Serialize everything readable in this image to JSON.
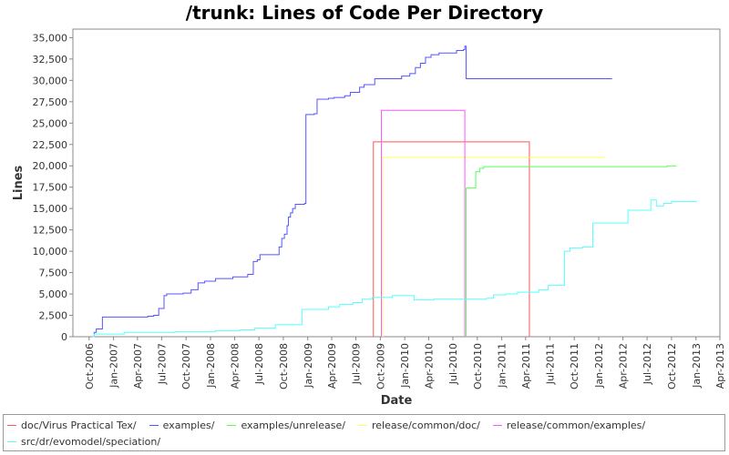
{
  "chart_data": {
    "type": "line",
    "title": "/trunk: Lines of Code Per Directory",
    "xlabel": "Date",
    "ylabel": "Lines",
    "xlim": [
      "2006-08-01",
      "2013-04-01"
    ],
    "ylim": [
      0,
      36000
    ],
    "y_ticks": [
      0,
      2500,
      5000,
      7500,
      10000,
      12500,
      15000,
      17500,
      20000,
      22500,
      25000,
      27500,
      30000,
      32500,
      35000
    ],
    "y_tick_labels": [
      "0",
      "2,500",
      "5,000",
      "7,500",
      "10,000",
      "12,500",
      "15,000",
      "17,500",
      "20,000",
      "22,500",
      "25,000",
      "27,500",
      "30,000",
      "32,500",
      "35,000"
    ],
    "x_ticks": [
      "2006-10-01",
      "2007-01-01",
      "2007-04-01",
      "2007-07-01",
      "2007-10-01",
      "2008-01-01",
      "2008-04-01",
      "2008-07-01",
      "2008-10-01",
      "2009-01-01",
      "2009-04-01",
      "2009-07-01",
      "2009-10-01",
      "2010-01-01",
      "2010-04-01",
      "2010-07-01",
      "2010-10-01",
      "2011-01-01",
      "2011-04-01",
      "2011-07-01",
      "2011-10-01",
      "2012-01-01",
      "2012-04-01",
      "2012-07-01",
      "2012-10-01",
      "2013-01-01",
      "2013-04-01"
    ],
    "x_tick_labels": [
      "Oct-2006",
      "Jan-2007",
      "Apr-2007",
      "Jul-2007",
      "Oct-2007",
      "Jan-2008",
      "Apr-2008",
      "Jul-2008",
      "Oct-2008",
      "Jan-2009",
      "Apr-2009",
      "Jul-2009",
      "Oct-2009",
      "Jan-2010",
      "Apr-2010",
      "Jul-2010",
      "Oct-2010",
      "Jan-2011",
      "Apr-2011",
      "Jul-2011",
      "Oct-2011",
      "Jan-2012",
      "Apr-2012",
      "Jul-2012",
      "Oct-2012",
      "Jan-2013",
      "Apr-2013"
    ],
    "grid": false,
    "legend_position": "bottom",
    "series": [
      {
        "name": "doc/Virus Practical Tex/",
        "color": "#ff5555",
        "step": true,
        "points": [
          [
            "2009-09-05",
            0
          ],
          [
            "2009-09-05",
            22800
          ],
          [
            "2011-04-15",
            22800
          ],
          [
            "2011-04-15",
            0
          ]
        ]
      },
      {
        "name": "examples/",
        "color": "#5555ff",
        "step": true,
        "points": [
          [
            "2006-10-15",
            0
          ],
          [
            "2006-10-20",
            500
          ],
          [
            "2006-10-28",
            900
          ],
          [
            "2006-11-20",
            2300
          ],
          [
            "2007-05-10",
            2400
          ],
          [
            "2007-06-01",
            2500
          ],
          [
            "2007-06-20",
            3300
          ],
          [
            "2007-07-10",
            4800
          ],
          [
            "2007-07-20",
            5000
          ],
          [
            "2007-09-20",
            5100
          ],
          [
            "2007-10-20",
            5500
          ],
          [
            "2007-11-15",
            6300
          ],
          [
            "2007-12-10",
            6500
          ],
          [
            "2008-01-20",
            6800
          ],
          [
            "2008-03-25",
            7000
          ],
          [
            "2008-05-20",
            7300
          ],
          [
            "2008-06-10",
            8800
          ],
          [
            "2008-06-25",
            9000
          ],
          [
            "2008-07-05",
            9600
          ],
          [
            "2008-09-15",
            10500
          ],
          [
            "2008-09-25",
            11500
          ],
          [
            "2008-10-05",
            12000
          ],
          [
            "2008-10-15",
            13000
          ],
          [
            "2008-10-20",
            14000
          ],
          [
            "2008-10-28",
            14500
          ],
          [
            "2008-11-05",
            15000
          ],
          [
            "2008-11-15",
            15500
          ],
          [
            "2008-12-20",
            15600
          ],
          [
            "2008-12-25",
            26000
          ],
          [
            "2009-01-25",
            26100
          ],
          [
            "2009-02-05",
            27800
          ],
          [
            "2009-03-20",
            27900
          ],
          [
            "2009-04-10",
            28000
          ],
          [
            "2009-05-20",
            28200
          ],
          [
            "2009-06-10",
            28600
          ],
          [
            "2009-07-15",
            29200
          ],
          [
            "2009-08-01",
            29500
          ],
          [
            "2009-09-10",
            30200
          ],
          [
            "2009-12-20",
            30500
          ],
          [
            "2010-01-20",
            30800
          ],
          [
            "2010-02-10",
            31500
          ],
          [
            "2010-03-01",
            32000
          ],
          [
            "2010-03-20",
            32700
          ],
          [
            "2010-04-10",
            33000
          ],
          [
            "2010-05-10",
            33200
          ],
          [
            "2010-07-15",
            33500
          ],
          [
            "2010-08-10",
            33600
          ],
          [
            "2010-08-15",
            34000
          ],
          [
            "2010-08-20",
            30200
          ],
          [
            "2012-02-20",
            30200
          ]
        ]
      },
      {
        "name": "examples/unrelease/",
        "color": "#55ff55",
        "step": true,
        "points": [
          [
            "2010-08-20",
            0
          ],
          [
            "2010-08-20",
            17400
          ],
          [
            "2010-09-25",
            19300
          ],
          [
            "2010-10-10",
            19700
          ],
          [
            "2010-10-25",
            19900
          ],
          [
            "2012-09-01",
            19900
          ],
          [
            "2012-09-15",
            20000
          ],
          [
            "2012-10-20",
            20000
          ]
        ]
      },
      {
        "name": "release/common/doc/",
        "color": "#ffff55",
        "step": true,
        "points": [
          [
            "2009-10-10",
            0
          ],
          [
            "2009-10-10",
            21000
          ],
          [
            "2012-01-25",
            21000
          ]
        ]
      },
      {
        "name": "release/common/examples/",
        "color": "#ff55ff",
        "step": true,
        "points": [
          [
            "2009-10-05",
            0
          ],
          [
            "2009-10-05",
            26500
          ],
          [
            "2010-08-15",
            26500
          ],
          [
            "2010-08-15",
            0
          ]
        ]
      },
      {
        "name": "src/dr/evomodel/speciation/",
        "color": "#55ffff",
        "step": true,
        "points": [
          [
            "2006-10-15",
            0
          ],
          [
            "2006-10-20",
            300
          ],
          [
            "2007-02-10",
            500
          ],
          [
            "2007-08-20",
            600
          ],
          [
            "2008-01-20",
            700
          ],
          [
            "2008-04-20",
            800
          ],
          [
            "2008-06-15",
            1000
          ],
          [
            "2008-09-01",
            1400
          ],
          [
            "2008-12-10",
            3200
          ],
          [
            "2009-03-20",
            3500
          ],
          [
            "2009-05-01",
            3800
          ],
          [
            "2009-06-20",
            4000
          ],
          [
            "2009-07-25",
            4400
          ],
          [
            "2009-09-01",
            4600
          ],
          [
            "2009-11-15",
            4800
          ],
          [
            "2010-02-05",
            4300
          ],
          [
            "2010-04-20",
            4400
          ],
          [
            "2010-11-05",
            4500
          ],
          [
            "2010-12-01",
            4900
          ],
          [
            "2011-01-15",
            5000
          ],
          [
            "2011-03-01",
            5200
          ],
          [
            "2011-05-20",
            5500
          ],
          [
            "2011-06-25",
            6000
          ],
          [
            "2011-08-25",
            10000
          ],
          [
            "2011-09-15",
            10400
          ],
          [
            "2011-11-01",
            10500
          ],
          [
            "2011-12-10",
            13300
          ],
          [
            "2012-04-20",
            14800
          ],
          [
            "2012-07-15",
            16000
          ],
          [
            "2012-08-05",
            15300
          ],
          [
            "2012-09-01",
            15600
          ],
          [
            "2012-10-01",
            15800
          ],
          [
            "2013-01-05",
            15800
          ]
        ]
      }
    ]
  }
}
